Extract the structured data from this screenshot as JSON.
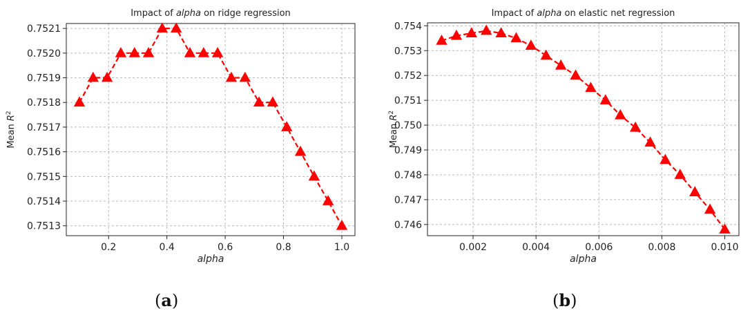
{
  "chart_data": [
    {
      "type": "line",
      "title_prefix": "Impact of ",
      "title_italic": "alpha",
      "title_suffix": " on ridge regression",
      "xlabel": "alpha",
      "ylabel_main": "Mean ",
      "ylabel_sym": "R",
      "ylabel_sup": "2",
      "xlim": [
        0.055,
        1.045
      ],
      "ylim": [
        0.75126,
        0.75212
      ],
      "xticks": [
        0.2,
        0.4,
        0.6,
        0.8,
        1.0
      ],
      "xtick_labels": [
        "0.2",
        "0.4",
        "0.6",
        "0.8",
        "1.0"
      ],
      "yticks": [
        0.7513,
        0.7514,
        0.7515,
        0.7516,
        0.7517,
        0.7518,
        0.7519,
        0.752,
        0.7521
      ],
      "ytick_labels": [
        "0.7513",
        "0.7514",
        "0.7515",
        "0.7516",
        "0.7517",
        "0.7518",
        "0.7519",
        "0.7520",
        "0.7521"
      ],
      "grid": true,
      "color": "#ff0000",
      "line_style": "dashed",
      "marker": "triangle",
      "x": [
        0.1,
        0.147,
        0.195,
        0.242,
        0.289,
        0.337,
        0.384,
        0.432,
        0.479,
        0.526,
        0.574,
        0.621,
        0.668,
        0.716,
        0.763,
        0.811,
        0.858,
        0.905,
        0.953,
        1.0
      ],
      "y": [
        0.7518,
        0.7519,
        0.7519,
        0.752,
        0.752,
        0.752,
        0.7521,
        0.7521,
        0.752,
        0.752,
        0.752,
        0.7519,
        0.7519,
        0.7518,
        0.7518,
        0.7517,
        0.7516,
        0.7515,
        0.7514,
        0.7513
      ]
    },
    {
      "type": "line",
      "title_prefix": "Impact of ",
      "title_italic": "alpha",
      "title_suffix": " on elastic net regression",
      "xlabel": "alpha",
      "ylabel_main": "Mean ",
      "ylabel_sym": "R",
      "ylabel_sup": "2",
      "xlim": [
        0.00055,
        0.01045
      ],
      "ylim": [
        0.74555,
        0.75412
      ],
      "xticks": [
        0.002,
        0.004,
        0.006,
        0.008,
        0.01
      ],
      "xtick_labels": [
        "0.002",
        "0.004",
        "0.006",
        "0.008",
        "0.010"
      ],
      "yticks": [
        0.746,
        0.747,
        0.748,
        0.749,
        0.75,
        0.751,
        0.752,
        0.753,
        0.754
      ],
      "ytick_labels": [
        "0.746",
        "0.747",
        "0.748",
        "0.749",
        "0.750",
        "0.751",
        "0.752",
        "0.753",
        "0.754"
      ],
      "grid": true,
      "color": "#ff0000",
      "line_style": "dashed",
      "marker": "triangle",
      "x": [
        0.001,
        0.00147,
        0.00195,
        0.00242,
        0.00289,
        0.00337,
        0.00384,
        0.00432,
        0.00479,
        0.00526,
        0.00574,
        0.00621,
        0.00668,
        0.00716,
        0.00763,
        0.00811,
        0.00858,
        0.00905,
        0.00953,
        0.01
      ],
      "y": [
        0.7534,
        0.7536,
        0.7537,
        0.7538,
        0.7537,
        0.7535,
        0.7532,
        0.7528,
        0.7524,
        0.752,
        0.7515,
        0.751,
        0.7504,
        0.7499,
        0.7493,
        0.7486,
        0.748,
        0.7473,
        0.7466,
        0.7458
      ]
    }
  ],
  "subfigures": [
    {
      "open": "(",
      "letter": "a",
      "close": ")"
    },
    {
      "open": "(",
      "letter": "b",
      "close": ")"
    }
  ]
}
